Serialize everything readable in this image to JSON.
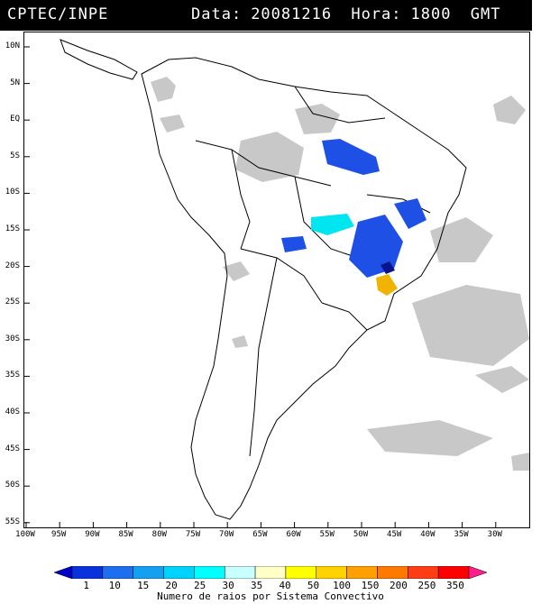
{
  "header": {
    "agency": "CPTEC/INPE",
    "date_label": "Data:",
    "date_value": "20081216",
    "hour_label": "Hora:",
    "hour_value": "1800",
    "tz": "GMT"
  },
  "axes": {
    "lat_labels": [
      "10N",
      "5N",
      "EQ",
      "5S",
      "10S",
      "15S",
      "20S",
      "25S",
      "30S",
      "35S",
      "40S",
      "45S",
      "50S",
      "55S"
    ],
    "lon_labels": [
      "100W",
      "95W",
      "90W",
      "85W",
      "80W",
      "75W",
      "70W",
      "65W",
      "60W",
      "55W",
      "50W",
      "45W",
      "40W",
      "35W",
      "30W"
    ]
  },
  "legend": {
    "title": "Numero de raios por Sistema Convectivo",
    "ticks": [
      "1",
      "10",
      "15",
      "20",
      "25",
      "30",
      "35",
      "40",
      "50",
      "100",
      "150",
      "200",
      "250",
      "350"
    ],
    "colors": [
      "#0000c8",
      "#0a32dc",
      "#1e6ef0",
      "#14a0f0",
      "#00d2ff",
      "#00ffff",
      "#c8ffff",
      "#ffffc8",
      "#ffff00",
      "#ffd200",
      "#ffa000",
      "#ff7800",
      "#ff3c14",
      "#ff0000",
      "#ff1e8c"
    ]
  },
  "colors": {
    "cloud": "#c8c8c8",
    "coast": "#000000"
  }
}
